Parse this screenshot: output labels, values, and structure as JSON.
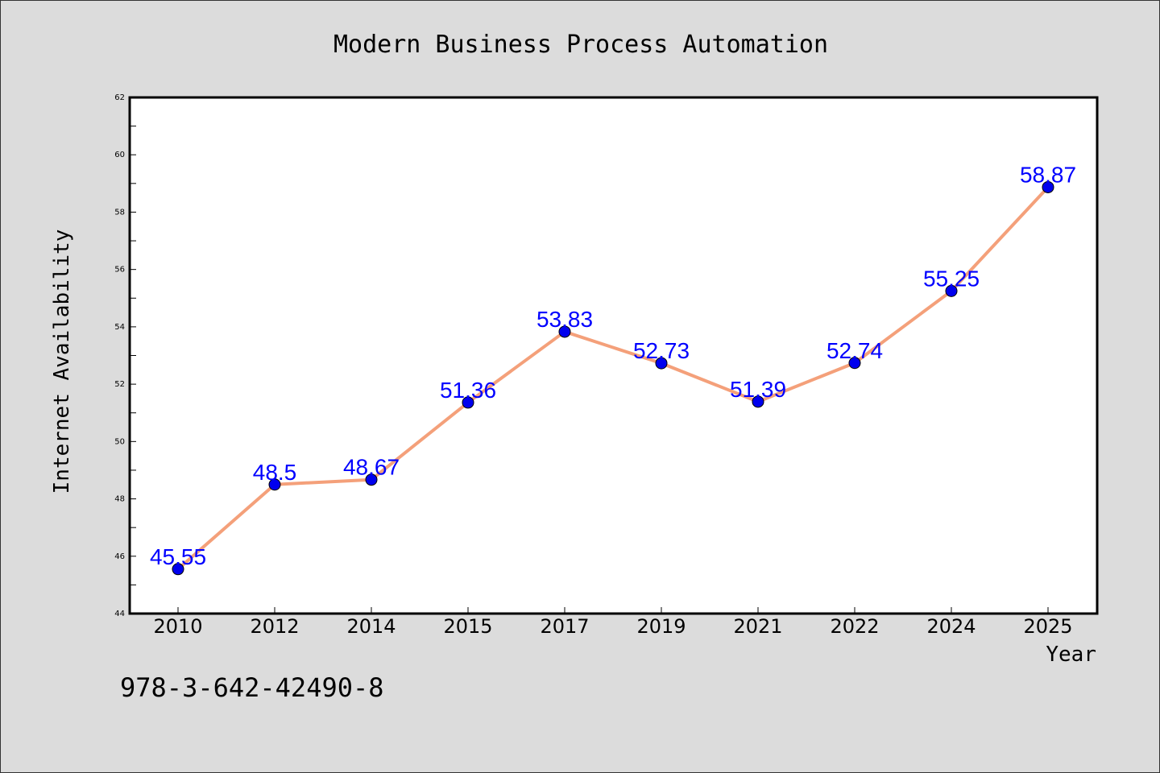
{
  "chart_data": {
    "type": "line",
    "title": "Modern Business Process Automation",
    "xlabel": "Year",
    "ylabel": "Internet Availability",
    "categories": [
      "2010",
      "2012",
      "2014",
      "2015",
      "2017",
      "2019",
      "2021",
      "2022",
      "2024",
      "2025"
    ],
    "series": [
      {
        "values": [
          45.55,
          48.5,
          48.67,
          51.36,
          53.83,
          52.73,
          51.39,
          52.74,
          55.25,
          58.87
        ],
        "labels": [
          "45.55",
          "48.5",
          "48.67",
          "51.36",
          "53.83",
          "52.73",
          "51.39",
          "52.74",
          "55.25",
          "58.87"
        ],
        "line_color": "#f4a07a",
        "marker_color": "#0000ee",
        "label_color": "#0000ff"
      }
    ],
    "ylim": [
      44,
      62
    ],
    "yticks": [
      "44",
      "46",
      "48",
      "50",
      "52",
      "54",
      "56",
      "58",
      "60",
      "62"
    ],
    "grid": false,
    "legend": "none"
  },
  "annotation": "978-3-642-42490-8",
  "colors": {
    "background": "#dcdcdc",
    "plot_background": "#ffffff",
    "axes": "#000000"
  }
}
